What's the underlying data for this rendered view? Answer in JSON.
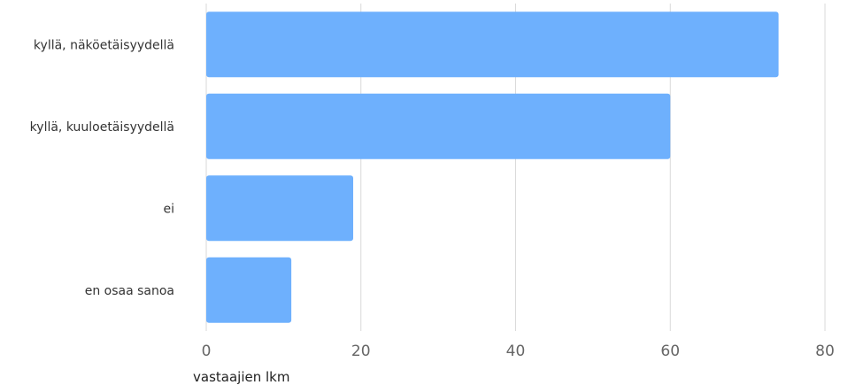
{
  "chart_data": {
    "type": "bar",
    "orientation": "horizontal",
    "categories": [
      "kyllä, näköetäisyydellä",
      "kyllä, kuuloetäisyydellä",
      "ei",
      "en osaa sanoa"
    ],
    "values": [
      74,
      60,
      19,
      11
    ],
    "title": "",
    "xlabel": "vastaajien lkm",
    "ylabel": "",
    "xlim": [
      0,
      80
    ],
    "xticks": [
      "0",
      "20",
      "40",
      "60",
      "80"
    ],
    "grid": true,
    "legend": "none",
    "bar_color": "#6eb0fd",
    "grid_color": "#d9d9d9"
  }
}
